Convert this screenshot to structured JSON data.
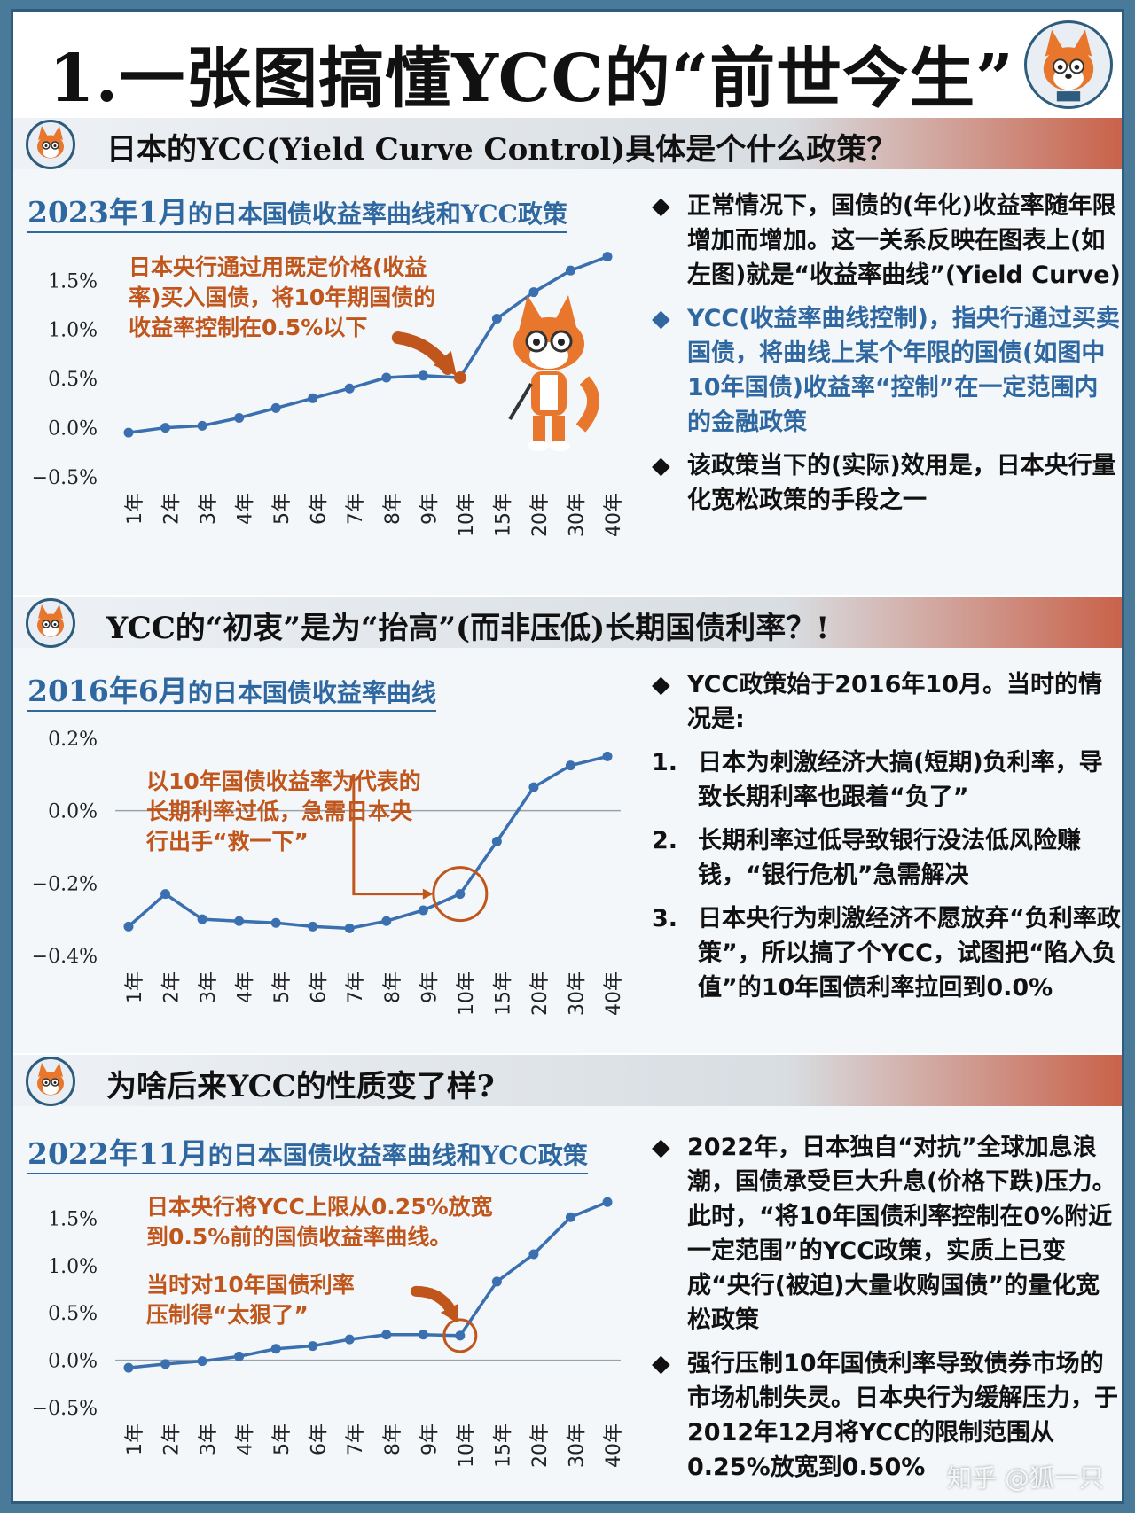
{
  "title": "1.一张图搞懂YCC的“前世今生”",
  "sections": [
    {
      "heading": "日本的YCC(Yield Curve Control)具体是个什么政策？",
      "chart_title_highlight": "2023年1月",
      "chart_title_rest": "的日本国债收益率曲线和YCC政策",
      "annotations": [
        "日本央行通过用既定价格(收益",
        "率)买入国债，将10年期国债的",
        "收益率控制在0.5%以下"
      ],
      "bullets": [
        {
          "mark": "◆",
          "text": "正常情况下，国债的(年化)收益率随年限增加而增加。这一关系反映在图表上(如左图)就是“收益率曲线”(Yield Curve)",
          "style": "black"
        },
        {
          "mark": "◆",
          "text": "YCC(收益率曲线控制)，指央行通过买卖国债，将曲线上某个年限的国债(如图中10年国债)收益率“控制”在一定范围内的金融政策",
          "style": "blue"
        },
        {
          "mark": "◆",
          "text": "该政策当下的(实际)效用是，日本央行量化宽松政策的手段之一",
          "style": "black"
        }
      ]
    },
    {
      "heading": "YCC的“初衷”是为“抬高”(而非压低)长期国债利率？!",
      "chart_title_highlight": "2016年6月",
      "chart_title_rest": "的日本国债收益率曲线",
      "annotations": [
        "以10年国债收益率为代表的",
        "长期利率过低，急需日本央",
        "行出手“救一下”"
      ],
      "intro": "YCC政策始于2016年10月。当时的情况是:",
      "intro_mark": "◆",
      "items": [
        {
          "num": "1.",
          "text": "日本为刺激经济大搞(短期)负利率，导致长期利率也跟着“负了”"
        },
        {
          "num": "2.",
          "text": "长期利率过低导致银行没法低风险赚钱，“银行危机”急需解决"
        },
        {
          "num": "3.",
          "text": "日本央行为刺激经济不愿放弃“负利率政策”，所以搞了个YCC，试图把“陷入负值”的10年国债利率拉回到0.0%"
        }
      ]
    },
    {
      "heading": "为啥后来YCC的性质变了样?",
      "chart_title_highlight": "2022年11月",
      "chart_title_rest": "的日本国债收益率曲线和YCC政策",
      "annotations": [
        "日本央行将YCC上限从0.25%放宽",
        "到0.5%前的国债收益率曲线。"
      ],
      "annotations2": [
        "当时对10年国债利率",
        "压制得“太狠了”"
      ],
      "bullets": [
        {
          "mark": "◆",
          "text": "2022年，日本独自“对抗”全球加息浪潮，国债承受巨大升息(价格下跌)压力。此时，“将10年国债利率控制在0%附近一定范围”的YCC政策，实质上已变成“央行(被迫)大量收购国债”的量化宽松政策",
          "style": "black"
        },
        {
          "mark": "◆",
          "text": "强行压制10年国债利率导致债券市场的市场机制失灵。日本央行为缓解压力，于2012年12月将YCC的限制范围从0.25%放宽到0.50%",
          "style": "black"
        }
      ]
    }
  ],
  "watermark": "知乎 @狐一只",
  "chart_data": [
    {
      "type": "line",
      "categories": [
        "1年",
        "2年",
        "3年",
        "4年",
        "5年",
        "6年",
        "7年",
        "8年",
        "9年",
        "10年",
        "15年",
        "20年",
        "30年",
        "40年"
      ],
      "values": [
        -0.05,
        0.0,
        0.02,
        0.1,
        0.2,
        0.3,
        0.4,
        0.51,
        0.53,
        0.51,
        1.11,
        1.38,
        1.6,
        1.74
      ],
      "highlight_index": 9,
      "ylim": [
        -0.5,
        1.8
      ],
      "yticks": [
        -0.5,
        0.0,
        0.5,
        1.0,
        1.5
      ],
      "ytick_labels": [
        "−0.5%",
        "0.0%",
        "0.5%",
        "1.0%",
        "1.5%"
      ],
      "line_color": "#3a6fb0"
    },
    {
      "type": "line",
      "categories": [
        "1年",
        "2年",
        "3年",
        "4年",
        "5年",
        "6年",
        "7年",
        "8年",
        "9年",
        "10年",
        "15年",
        "20年",
        "30年",
        "40年"
      ],
      "values": [
        -0.32,
        -0.23,
        -0.3,
        -0.305,
        -0.31,
        -0.32,
        -0.325,
        -0.305,
        -0.275,
        -0.23,
        -0.085,
        0.065,
        0.125,
        0.15
      ],
      "highlight_index": 9,
      "ylim": [
        -0.4,
        0.2
      ],
      "yticks": [
        -0.4,
        -0.2,
        0.0,
        0.2
      ],
      "ytick_labels": [
        "−0.4%",
        "−0.2%",
        "0.0%",
        "0.2%"
      ],
      "line_color": "#3a6fb0"
    },
    {
      "type": "line",
      "categories": [
        "1年",
        "2年",
        "3年",
        "4年",
        "5年",
        "6年",
        "7年",
        "8年",
        "9年",
        "10年",
        "15年",
        "20年",
        "30年",
        "40年"
      ],
      "values": [
        -0.08,
        -0.04,
        -0.01,
        0.04,
        0.12,
        0.15,
        0.22,
        0.27,
        0.27,
        0.26,
        0.83,
        1.12,
        1.51,
        1.67
      ],
      "highlight_index": 9,
      "ylim": [
        -0.5,
        1.7
      ],
      "yticks": [
        -0.5,
        0.0,
        0.5,
        1.0,
        1.5
      ],
      "ytick_labels": [
        "−0.5%",
        "0.0%",
        "0.5%",
        "1.0%",
        "1.5%"
      ],
      "line_color": "#3a6fb0"
    }
  ]
}
